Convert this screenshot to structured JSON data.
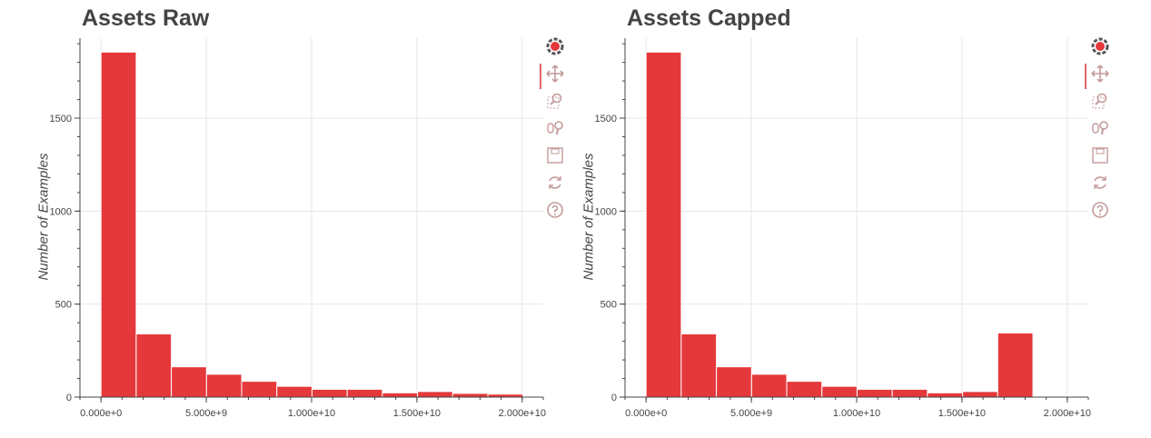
{
  "chart_data": [
    {
      "type": "bar",
      "title": "Assets Raw",
      "xlabel": "",
      "ylabel": "Number of Examples",
      "x_tick_labels": [
        "0.000e+0",
        "5.000e+9",
        "1.000e+10",
        "1.500e+10",
        "2.000e+10"
      ],
      "x_ticks": [
        0,
        5000000000,
        10000000000,
        15000000000,
        20000000000
      ],
      "y_ticks": [
        0,
        500,
        1000,
        1500
      ],
      "xlim": [
        -1000000000,
        21000000000
      ],
      "ylim": [
        0,
        1930
      ],
      "bin_edges": [
        0,
        1670000000,
        3340000000,
        5010000000,
        6680000000,
        8350000000,
        10020000000,
        11690000000,
        13360000000,
        15030000000,
        16700000000,
        18370000000,
        20040000000
      ],
      "values": [
        1855,
        340,
        163,
        123,
        85,
        58,
        42,
        42,
        23,
        30,
        20,
        16
      ],
      "color": "#e5383b",
      "grid": true
    },
    {
      "type": "bar",
      "title": "Assets Capped",
      "xlabel": "",
      "ylabel": "Number of Examples",
      "x_tick_labels": [
        "0.000e+0",
        "5.000e+9",
        "1.000e+10",
        "1.500e+10",
        "2.000e+10"
      ],
      "x_ticks": [
        0,
        5000000000,
        10000000000,
        15000000000,
        20000000000
      ],
      "y_ticks": [
        0,
        500,
        1000,
        1500
      ],
      "xlim": [
        -1000000000,
        21000000000
      ],
      "ylim": [
        0,
        1930
      ],
      "bin_edges": [
        0,
        1670000000,
        3340000000,
        5010000000,
        6680000000,
        8350000000,
        10020000000,
        11690000000,
        13360000000,
        15030000000,
        16700000000,
        18370000000
      ],
      "values": [
        1855,
        340,
        163,
        123,
        85,
        58,
        42,
        42,
        23,
        30,
        345
      ],
      "color": "#e5383b",
      "grid": true
    }
  ],
  "toolbar": {
    "tools": [
      "bokeh-logo-icon",
      "pan-icon",
      "box-zoom-icon",
      "wheel-zoom-icon",
      "save-icon",
      "reset-icon",
      "help-icon"
    ],
    "active_tool": "pan-icon",
    "icon_color": "#c49a9a"
  }
}
